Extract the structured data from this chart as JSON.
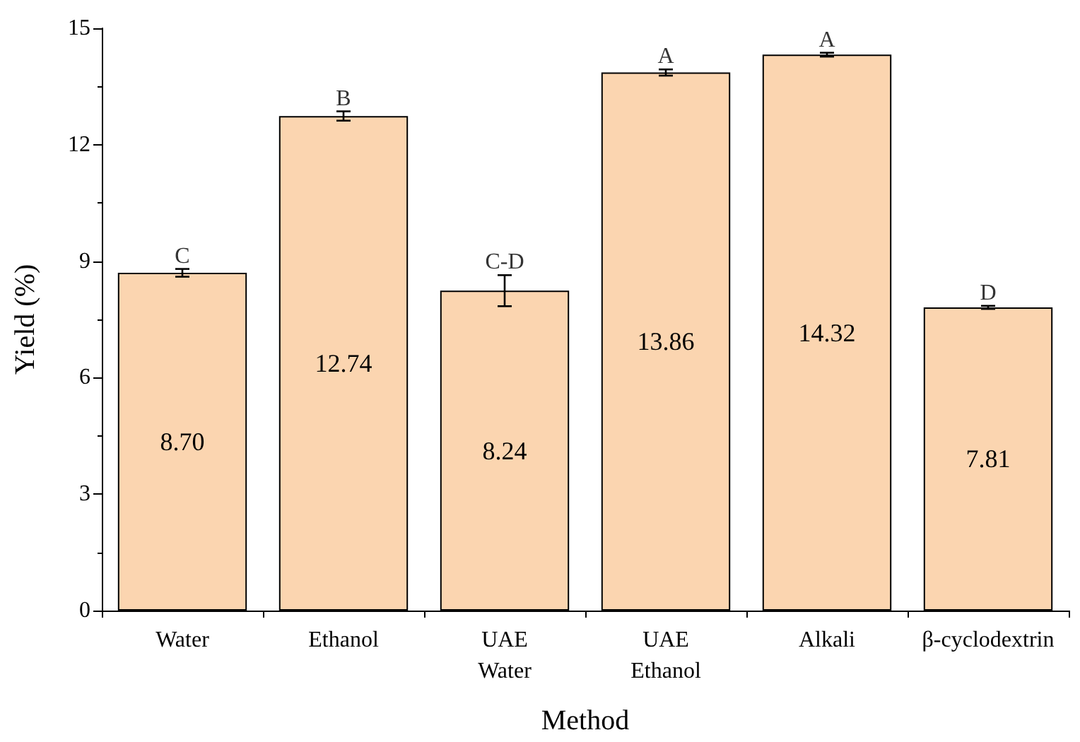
{
  "chart_data": {
    "type": "bar",
    "xlabel": "Method",
    "ylabel": "Yield (%)",
    "categories": [
      "Water",
      "Ethanol",
      "UAE\nWater",
      "UAE\nEthanol",
      "Alkali",
      "β-cyclodextrin"
    ],
    "values": [
      8.7,
      12.74,
      8.24,
      13.86,
      14.32,
      7.81
    ],
    "errors": [
      0.1,
      0.12,
      0.4,
      0.08,
      0.05,
      0.04
    ],
    "value_labels": [
      "8.70",
      "12.74",
      "8.24",
      "13.86",
      "14.32",
      "7.81"
    ],
    "color": "#fbd5b0",
    "ylim": [
      0,
      15
    ],
    "yticks": [
      0,
      3,
      6,
      9,
      12,
      15
    ],
    "grid": false,
    "annotations": [
      {
        "text": "C",
        "x": "Water",
        "y": 8.8
      },
      {
        "text": "B",
        "x": "Ethanol",
        "y": 12.86
      },
      {
        "text": "C-D",
        "x": "UAE\nWater",
        "y": 8.64
      },
      {
        "text": "A",
        "x": "UAE\nEthanol",
        "y": 13.94
      },
      {
        "text": "A",
        "x": "Alkali",
        "y": 14.37
      },
      {
        "text": "D",
        "x": "β-cyclodextrin",
        "y": 7.85
      }
    ]
  }
}
